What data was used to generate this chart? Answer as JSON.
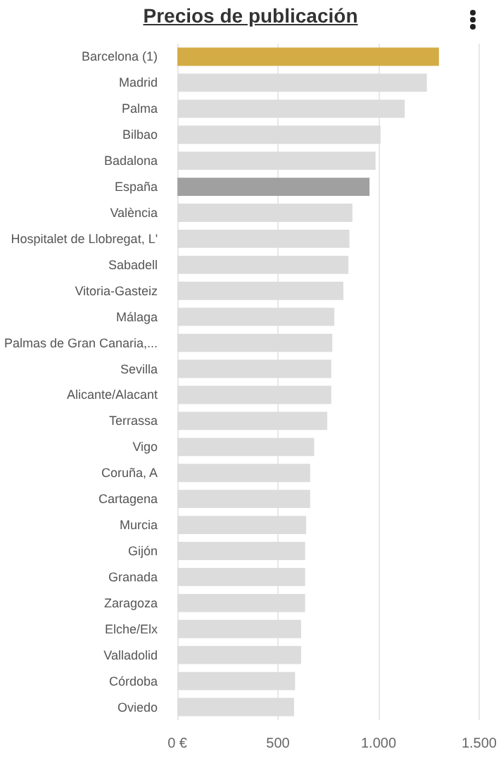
{
  "chart_data": {
    "type": "bar",
    "orientation": "horizontal",
    "title": "Precios de publicación",
    "categories": [
      "Barcelona (1)",
      "Madrid",
      "Palma",
      "Bilbao",
      "Badalona",
      "España",
      "València",
      "Hospitalet de Llobregat, L'",
      "Sabadell",
      "Vitoria-Gasteiz",
      "Málaga",
      "Palmas de Gran Canaria,...",
      "Sevilla",
      "Alicante/Alacant",
      "Terrassa",
      "Vigo",
      "Coruña, A",
      "Cartagena",
      "Murcia",
      "Gijón",
      "Granada",
      "Zaragoza",
      "Elche/Elx",
      "Valladolid",
      "Córdoba",
      "Oviedo"
    ],
    "values": [
      1300,
      1240,
      1130,
      1010,
      985,
      955,
      870,
      855,
      850,
      825,
      780,
      770,
      765,
      765,
      745,
      680,
      660,
      660,
      640,
      635,
      635,
      635,
      615,
      615,
      585,
      580
    ],
    "colors": [
      "#d4ac45",
      "#dcdcdc",
      "#dcdcdc",
      "#dcdcdc",
      "#dcdcdc",
      "#a0a0a0",
      "#dcdcdc",
      "#dcdcdc",
      "#dcdcdc",
      "#dcdcdc",
      "#dcdcdc",
      "#dcdcdc",
      "#dcdcdc",
      "#dcdcdc",
      "#dcdcdc",
      "#dcdcdc",
      "#dcdcdc",
      "#dcdcdc",
      "#dcdcdc",
      "#dcdcdc",
      "#dcdcdc",
      "#dcdcdc",
      "#dcdcdc",
      "#dcdcdc",
      "#dcdcdc",
      "#dcdcdc"
    ],
    "xlim": [
      0,
      1500
    ],
    "xticks": [
      {
        "value": 0,
        "label": "0 €"
      },
      500,
      {
        "value": 1000,
        "label": "1.000"
      },
      {
        "value": 1500,
        "label": "1.500"
      }
    ],
    "grid": "x"
  }
}
